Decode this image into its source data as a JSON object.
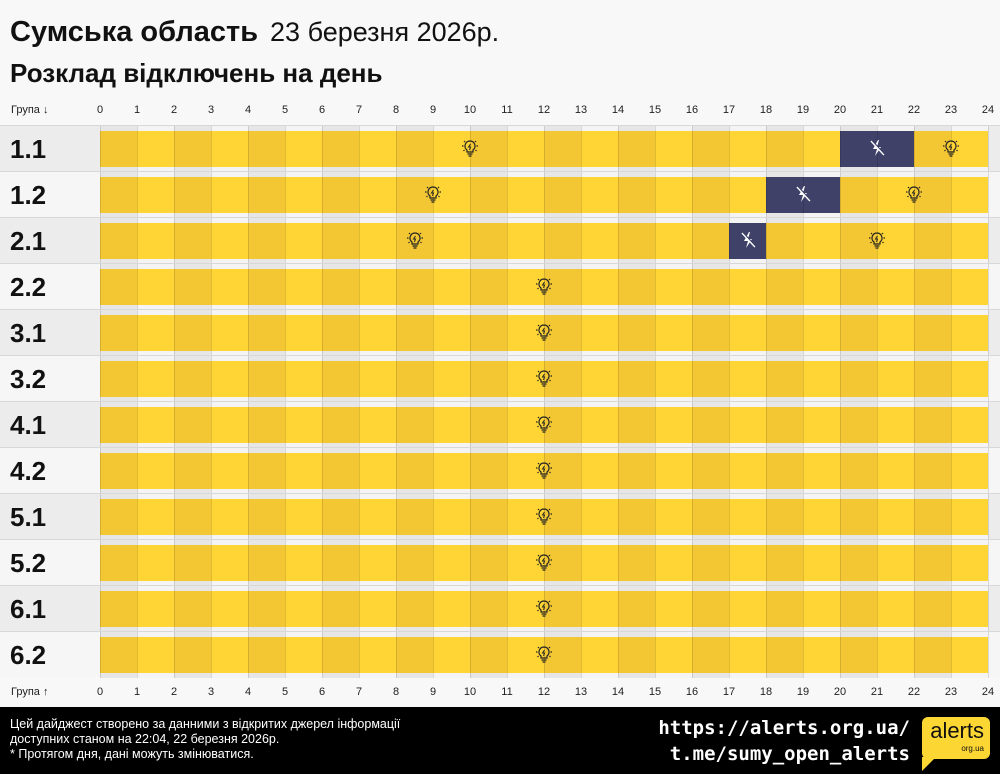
{
  "header": {
    "region": "Сумська область",
    "date": "23 березня 2026р.",
    "subtitle": "Розклад відключень на день"
  },
  "axis": {
    "top_label": "Група ↓",
    "bottom_label": "Група ↑",
    "hours": [
      "0",
      "1",
      "2",
      "3",
      "4",
      "5",
      "6",
      "7",
      "8",
      "9",
      "10",
      "11",
      "12",
      "13",
      "14",
      "15",
      "16",
      "17",
      "18",
      "19",
      "20",
      "21",
      "22",
      "23",
      "24"
    ]
  },
  "colors": {
    "on_even": "#f3c734",
    "on_odd": "#fed535",
    "off": "#3f4169",
    "row_bg_a": "#ececec",
    "row_bg_b": "#f6f6f6"
  },
  "icons": {
    "power_on": "lightbulb-icon",
    "power_off": "no-power-bolt-icon"
  },
  "chart_data": {
    "type": "table",
    "x_range": [
      0,
      24
    ],
    "groups": [
      {
        "label": "1.1",
        "off": [
          [
            20,
            22
          ]
        ]
      },
      {
        "label": "1.2",
        "off": [
          [
            18,
            20
          ]
        ]
      },
      {
        "label": "2.1",
        "off": [
          [
            17,
            18
          ]
        ]
      },
      {
        "label": "2.2",
        "off": []
      },
      {
        "label": "3.1",
        "off": []
      },
      {
        "label": "3.2",
        "off": []
      },
      {
        "label": "4.1",
        "off": []
      },
      {
        "label": "4.2",
        "off": []
      },
      {
        "label": "5.1",
        "off": []
      },
      {
        "label": "5.2",
        "off": []
      },
      {
        "label": "6.1",
        "off": []
      },
      {
        "label": "6.2",
        "off": []
      }
    ]
  },
  "footer": {
    "note1": "Цей дайджест створено за данними з відкритих джерел інформації",
    "note2": "доступних станом на 22:04, 22 березня 2026р.",
    "note3": "* Протягом дня, дані можуть змінюватися.",
    "site": "https://alerts.org.ua/",
    "telegram": "t.me/sumy_open_alerts",
    "logo_text": "alerts",
    "logo_sub": "org.ua"
  }
}
